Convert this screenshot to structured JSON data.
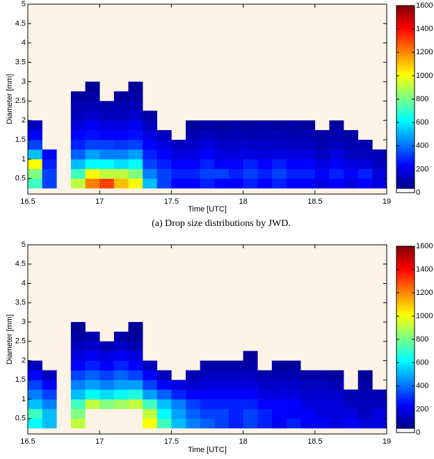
{
  "chart_data": [
    {
      "type": "heatmap",
      "caption": "(a) Drop size distributions by JWD.",
      "x_label": "Time [UTC]",
      "y_label": "Diameter [mm]",
      "background": "#fdf3e7",
      "colormap": "jet",
      "xlim": [
        16.5,
        19
      ],
      "xticks": [
        16.5,
        17,
        17.5,
        18,
        18.5,
        19
      ],
      "ylim": [
        0.1,
        5
      ],
      "yticks": [
        0.5,
        1,
        1.5,
        2,
        2.5,
        3,
        3.5,
        4,
        4.5,
        5
      ],
      "clim": [
        0,
        1600
      ],
      "cticks": [
        0,
        200,
        400,
        600,
        800,
        1000,
        1200,
        1400,
        1600
      ],
      "xbins": [
        16.5,
        16.6,
        16.7,
        16.8,
        16.9,
        17.0,
        17.1,
        17.2,
        17.3,
        17.4,
        17.5,
        17.6,
        17.7,
        17.8,
        17.9,
        18.0,
        18.1,
        18.2,
        18.3,
        18.4,
        18.5,
        18.6,
        18.7,
        18.8,
        18.9,
        19.0
      ],
      "ybins": [
        0.25,
        0.5,
        0.75,
        1.0,
        1.25,
        1.5,
        1.75,
        2.0,
        2.25,
        2.5,
        2.75,
        3.0
      ],
      "z": [
        [
          700,
          300,
          null,
          900,
          1200,
          1300,
          1100,
          1000,
          500,
          300,
          200,
          200,
          250,
          200,
          200,
          250,
          200,
          250,
          200,
          200,
          150,
          200,
          150,
          200,
          150
        ],
        [
          800,
          300,
          null,
          700,
          1000,
          900,
          900,
          800,
          400,
          300,
          250,
          250,
          300,
          300,
          250,
          300,
          250,
          300,
          250,
          250,
          200,
          250,
          200,
          250,
          150
        ],
        [
          1000,
          250,
          null,
          500,
          600,
          600,
          550,
          600,
          300,
          250,
          200,
          200,
          250,
          200,
          200,
          250,
          200,
          250,
          200,
          200,
          150,
          200,
          150,
          150,
          100
        ],
        [
          500,
          200,
          null,
          350,
          450,
          400,
          400,
          450,
          250,
          200,
          150,
          150,
          200,
          150,
          150,
          150,
          150,
          150,
          150,
          150,
          100,
          150,
          100,
          100,
          80
        ],
        [
          300,
          null,
          null,
          250,
          300,
          300,
          280,
          300,
          200,
          150,
          100,
          120,
          150,
          120,
          120,
          120,
          120,
          120,
          100,
          100,
          80,
          100,
          80,
          80,
          null
        ],
        [
          200,
          null,
          null,
          200,
          220,
          200,
          200,
          220,
          150,
          100,
          null,
          80,
          100,
          80,
          90,
          80,
          80,
          90,
          80,
          80,
          60,
          80,
          60,
          null,
          null
        ],
        [
          100,
          null,
          null,
          150,
          180,
          150,
          150,
          180,
          100,
          null,
          null,
          50,
          60,
          50,
          60,
          50,
          60,
          50,
          60,
          50,
          null,
          50,
          null,
          null,
          null
        ],
        [
          null,
          null,
          null,
          100,
          120,
          100,
          100,
          120,
          60,
          null,
          null,
          null,
          null,
          null,
          null,
          null,
          null,
          null,
          null,
          null,
          null,
          null,
          null,
          null,
          null
        ],
        [
          null,
          null,
          null,
          80,
          90,
          70,
          80,
          90,
          null,
          null,
          null,
          null,
          null,
          null,
          null,
          null,
          null,
          null,
          null,
          null,
          null,
          null,
          null,
          null,
          null
        ],
        [
          null,
          null,
          null,
          50,
          60,
          null,
          50,
          60,
          null,
          null,
          null,
          null,
          null,
          null,
          null,
          null,
          null,
          null,
          null,
          null,
          null,
          null,
          null,
          null,
          null
        ],
        [
          null,
          null,
          null,
          null,
          40,
          null,
          null,
          40,
          null,
          null,
          null,
          null,
          null,
          null,
          null,
          null,
          null,
          null,
          null,
          null,
          null,
          null,
          null,
          null,
          null
        ]
      ]
    },
    {
      "type": "heatmap",
      "x_label": "Time [UTC]",
      "y_label": "Diameter [mm]",
      "background": "#fdf3e7",
      "colormap": "jet",
      "xlim": [
        16.5,
        19
      ],
      "xticks": [
        16.5,
        17,
        17.5,
        18,
        18.5,
        19
      ],
      "ylim": [
        0.1,
        5
      ],
      "yticks": [
        0.5,
        1,
        1.5,
        2,
        2.5,
        3,
        3.5,
        4,
        4.5,
        5
      ],
      "clim": [
        0,
        1600
      ],
      "cticks": [
        0,
        200,
        400,
        600,
        800,
        1000,
        1200,
        1400,
        1600
      ],
      "xbins": [
        16.5,
        16.6,
        16.7,
        16.8,
        16.9,
        17.0,
        17.1,
        17.2,
        17.3,
        17.4,
        17.5,
        17.6,
        17.7,
        17.8,
        17.9,
        18.0,
        18.1,
        18.2,
        18.3,
        18.4,
        18.5,
        18.6,
        18.7,
        18.8,
        18.9,
        19.0
      ],
      "ybins": [
        0.25,
        0.5,
        0.75,
        1.0,
        1.25,
        1.5,
        1.75,
        2.0,
        2.25,
        2.5,
        2.75,
        3.0
      ],
      "z": [
        [
          600,
          500,
          null,
          900,
          null,
          null,
          null,
          null,
          1000,
          700,
          500,
          400,
          350,
          300,
          250,
          300,
          250,
          200,
          250,
          200,
          200,
          150,
          200,
          150,
          150
        ],
        [
          700,
          500,
          null,
          800,
          null,
          null,
          null,
          null,
          900,
          600,
          450,
          350,
          300,
          300,
          250,
          300,
          250,
          200,
          200,
          200,
          150,
          150,
          150,
          100,
          150
        ],
        [
          500,
          400,
          null,
          700,
          900,
          800,
          850,
          900,
          700,
          500,
          400,
          300,
          250,
          250,
          250,
          250,
          200,
          200,
          200,
          150,
          150,
          150,
          100,
          100,
          100
        ],
        [
          400,
          300,
          null,
          500,
          600,
          550,
          600,
          650,
          450,
          350,
          250,
          200,
          200,
          200,
          200,
          200,
          150,
          150,
          150,
          120,
          120,
          120,
          80,
          80,
          80
        ],
        [
          300,
          200,
          null,
          400,
          450,
          400,
          450,
          450,
          300,
          200,
          150,
          120,
          150,
          150,
          150,
          150,
          120,
          120,
          120,
          100,
          100,
          80,
          null,
          60,
          null
        ],
        [
          200,
          100,
          null,
          300,
          350,
          300,
          350,
          300,
          200,
          100,
          null,
          80,
          100,
          100,
          100,
          100,
          80,
          80,
          80,
          60,
          60,
          50,
          null,
          40,
          null
        ],
        [
          100,
          null,
          null,
          200,
          250,
          200,
          250,
          200,
          100,
          null,
          null,
          null,
          60,
          60,
          60,
          60,
          null,
          50,
          50,
          null,
          null,
          null,
          null,
          null,
          null
        ],
        [
          null,
          null,
          null,
          150,
          180,
          150,
          180,
          150,
          null,
          null,
          null,
          null,
          null,
          null,
          null,
          40,
          null,
          null,
          null,
          null,
          null,
          null,
          null,
          null,
          null
        ],
        [
          null,
          null,
          null,
          100,
          120,
          80,
          120,
          80,
          null,
          null,
          null,
          null,
          null,
          null,
          null,
          null,
          null,
          null,
          null,
          null,
          null,
          null,
          null,
          null,
          null
        ],
        [
          null,
          null,
          null,
          60,
          80,
          null,
          60,
          50,
          null,
          null,
          null,
          null,
          null,
          null,
          null,
          null,
          null,
          null,
          null,
          null,
          null,
          null,
          null,
          null,
          null
        ],
        [
          null,
          null,
          null,
          40,
          null,
          null,
          null,
          40,
          null,
          null,
          null,
          null,
          null,
          null,
          null,
          null,
          null,
          null,
          null,
          null,
          null,
          null,
          null,
          null,
          null
        ]
      ]
    }
  ]
}
